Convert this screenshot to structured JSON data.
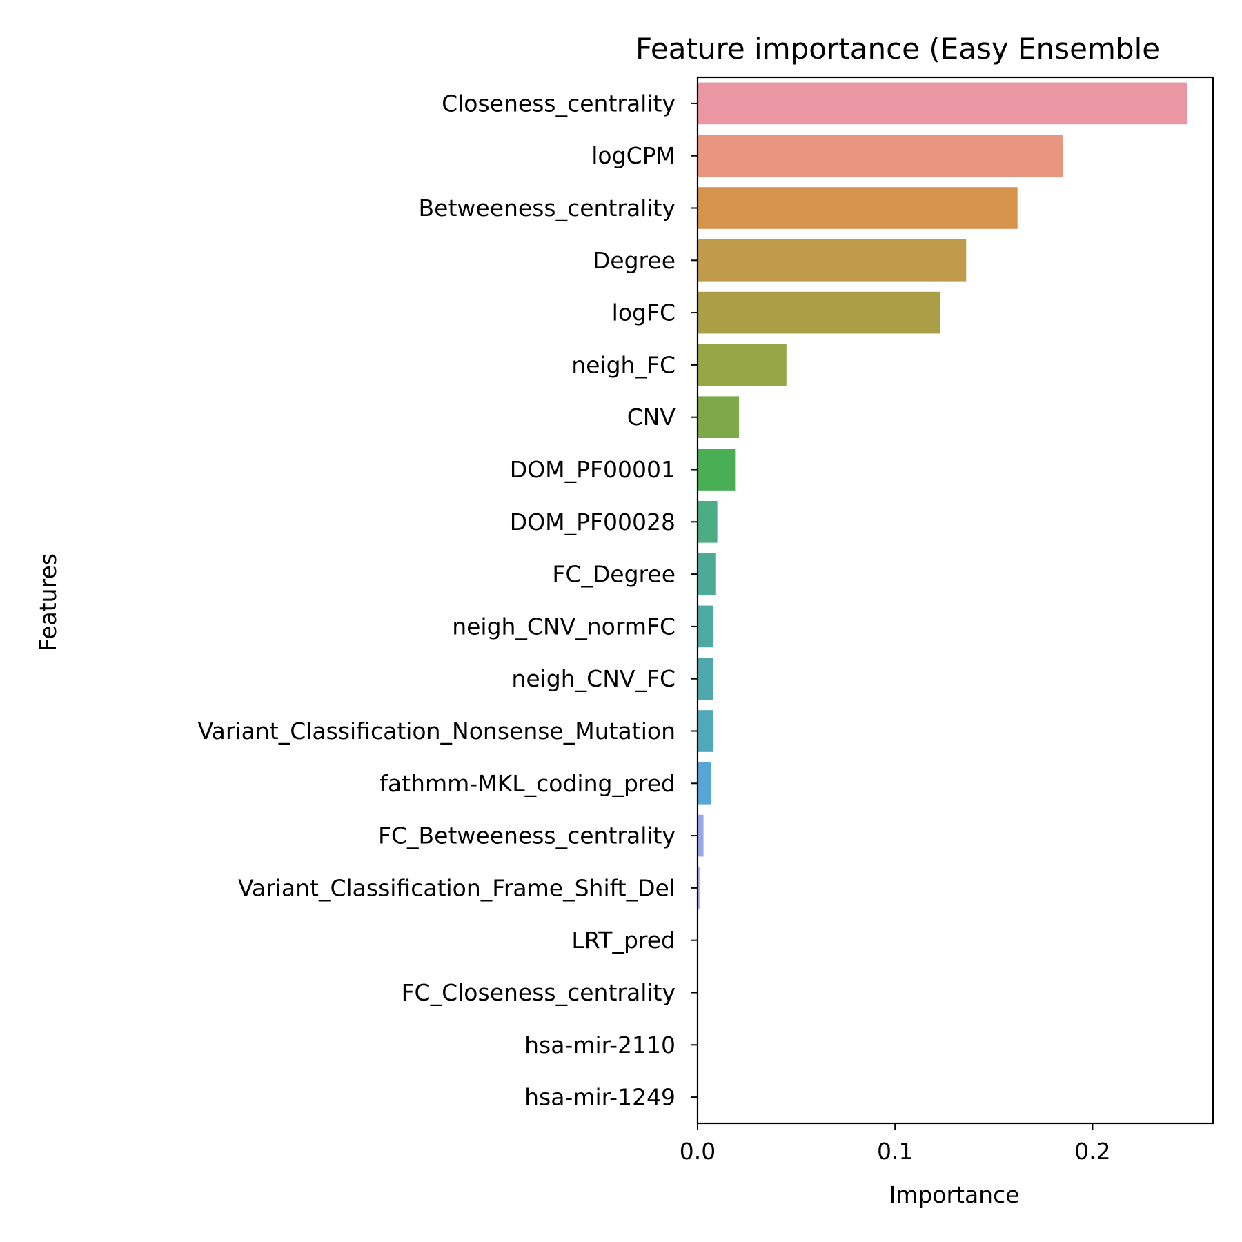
{
  "chart_data": {
    "type": "bar",
    "orientation": "horizontal",
    "title": "Feature importance (Easy Ensemble",
    "xlabel": "Importance",
    "ylabel": "Features",
    "xlim": [
      0,
      0.261
    ],
    "xticks": [
      {
        "value": 0.0,
        "label": "0.0"
      },
      {
        "value": 0.1,
        "label": "0.1"
      },
      {
        "value": 0.2,
        "label": "0.2"
      }
    ],
    "grid": false,
    "categories": [
      "Closeness_centrality",
      "logCPM",
      "Betweeness_centrality",
      "Degree",
      "logFC",
      "neigh_FC",
      "CNV",
      "DOM_PF00001",
      "DOM_PF00028",
      "FC_Degree",
      "neigh_CNV_normFC",
      "neigh_CNV_FC",
      "Variant_Classification_Nonsense_Mutation",
      "fathmm-MKL_coding_pred",
      "FC_Betweeness_centrality",
      "Variant_Classification_Frame_Shift_Del",
      "LRT_pred",
      "FC_Closeness_centrality",
      "hsa-mir-2110",
      "hsa-mir-1249"
    ],
    "values": [
      0.248,
      0.185,
      0.162,
      0.136,
      0.123,
      0.045,
      0.021,
      0.019,
      0.01,
      0.009,
      0.008,
      0.008,
      0.008,
      0.007,
      0.003,
      0.001,
      0.0,
      0.0,
      0.0,
      0.0
    ],
    "colors": [
      "#ea96a3",
      "#e8967f",
      "#d6934c",
      "#c09b4b",
      "#aa9f47",
      "#97a647",
      "#7ea948",
      "#4aae54",
      "#4cad84",
      "#4caa96",
      "#4ea9a3",
      "#4fa8ad",
      "#50a8b9",
      "#57a6d7",
      "#97a8e7",
      "#b7a4ea",
      "#d098ea",
      "#e38ee6",
      "#e890d4",
      "#ea92bd"
    ]
  }
}
